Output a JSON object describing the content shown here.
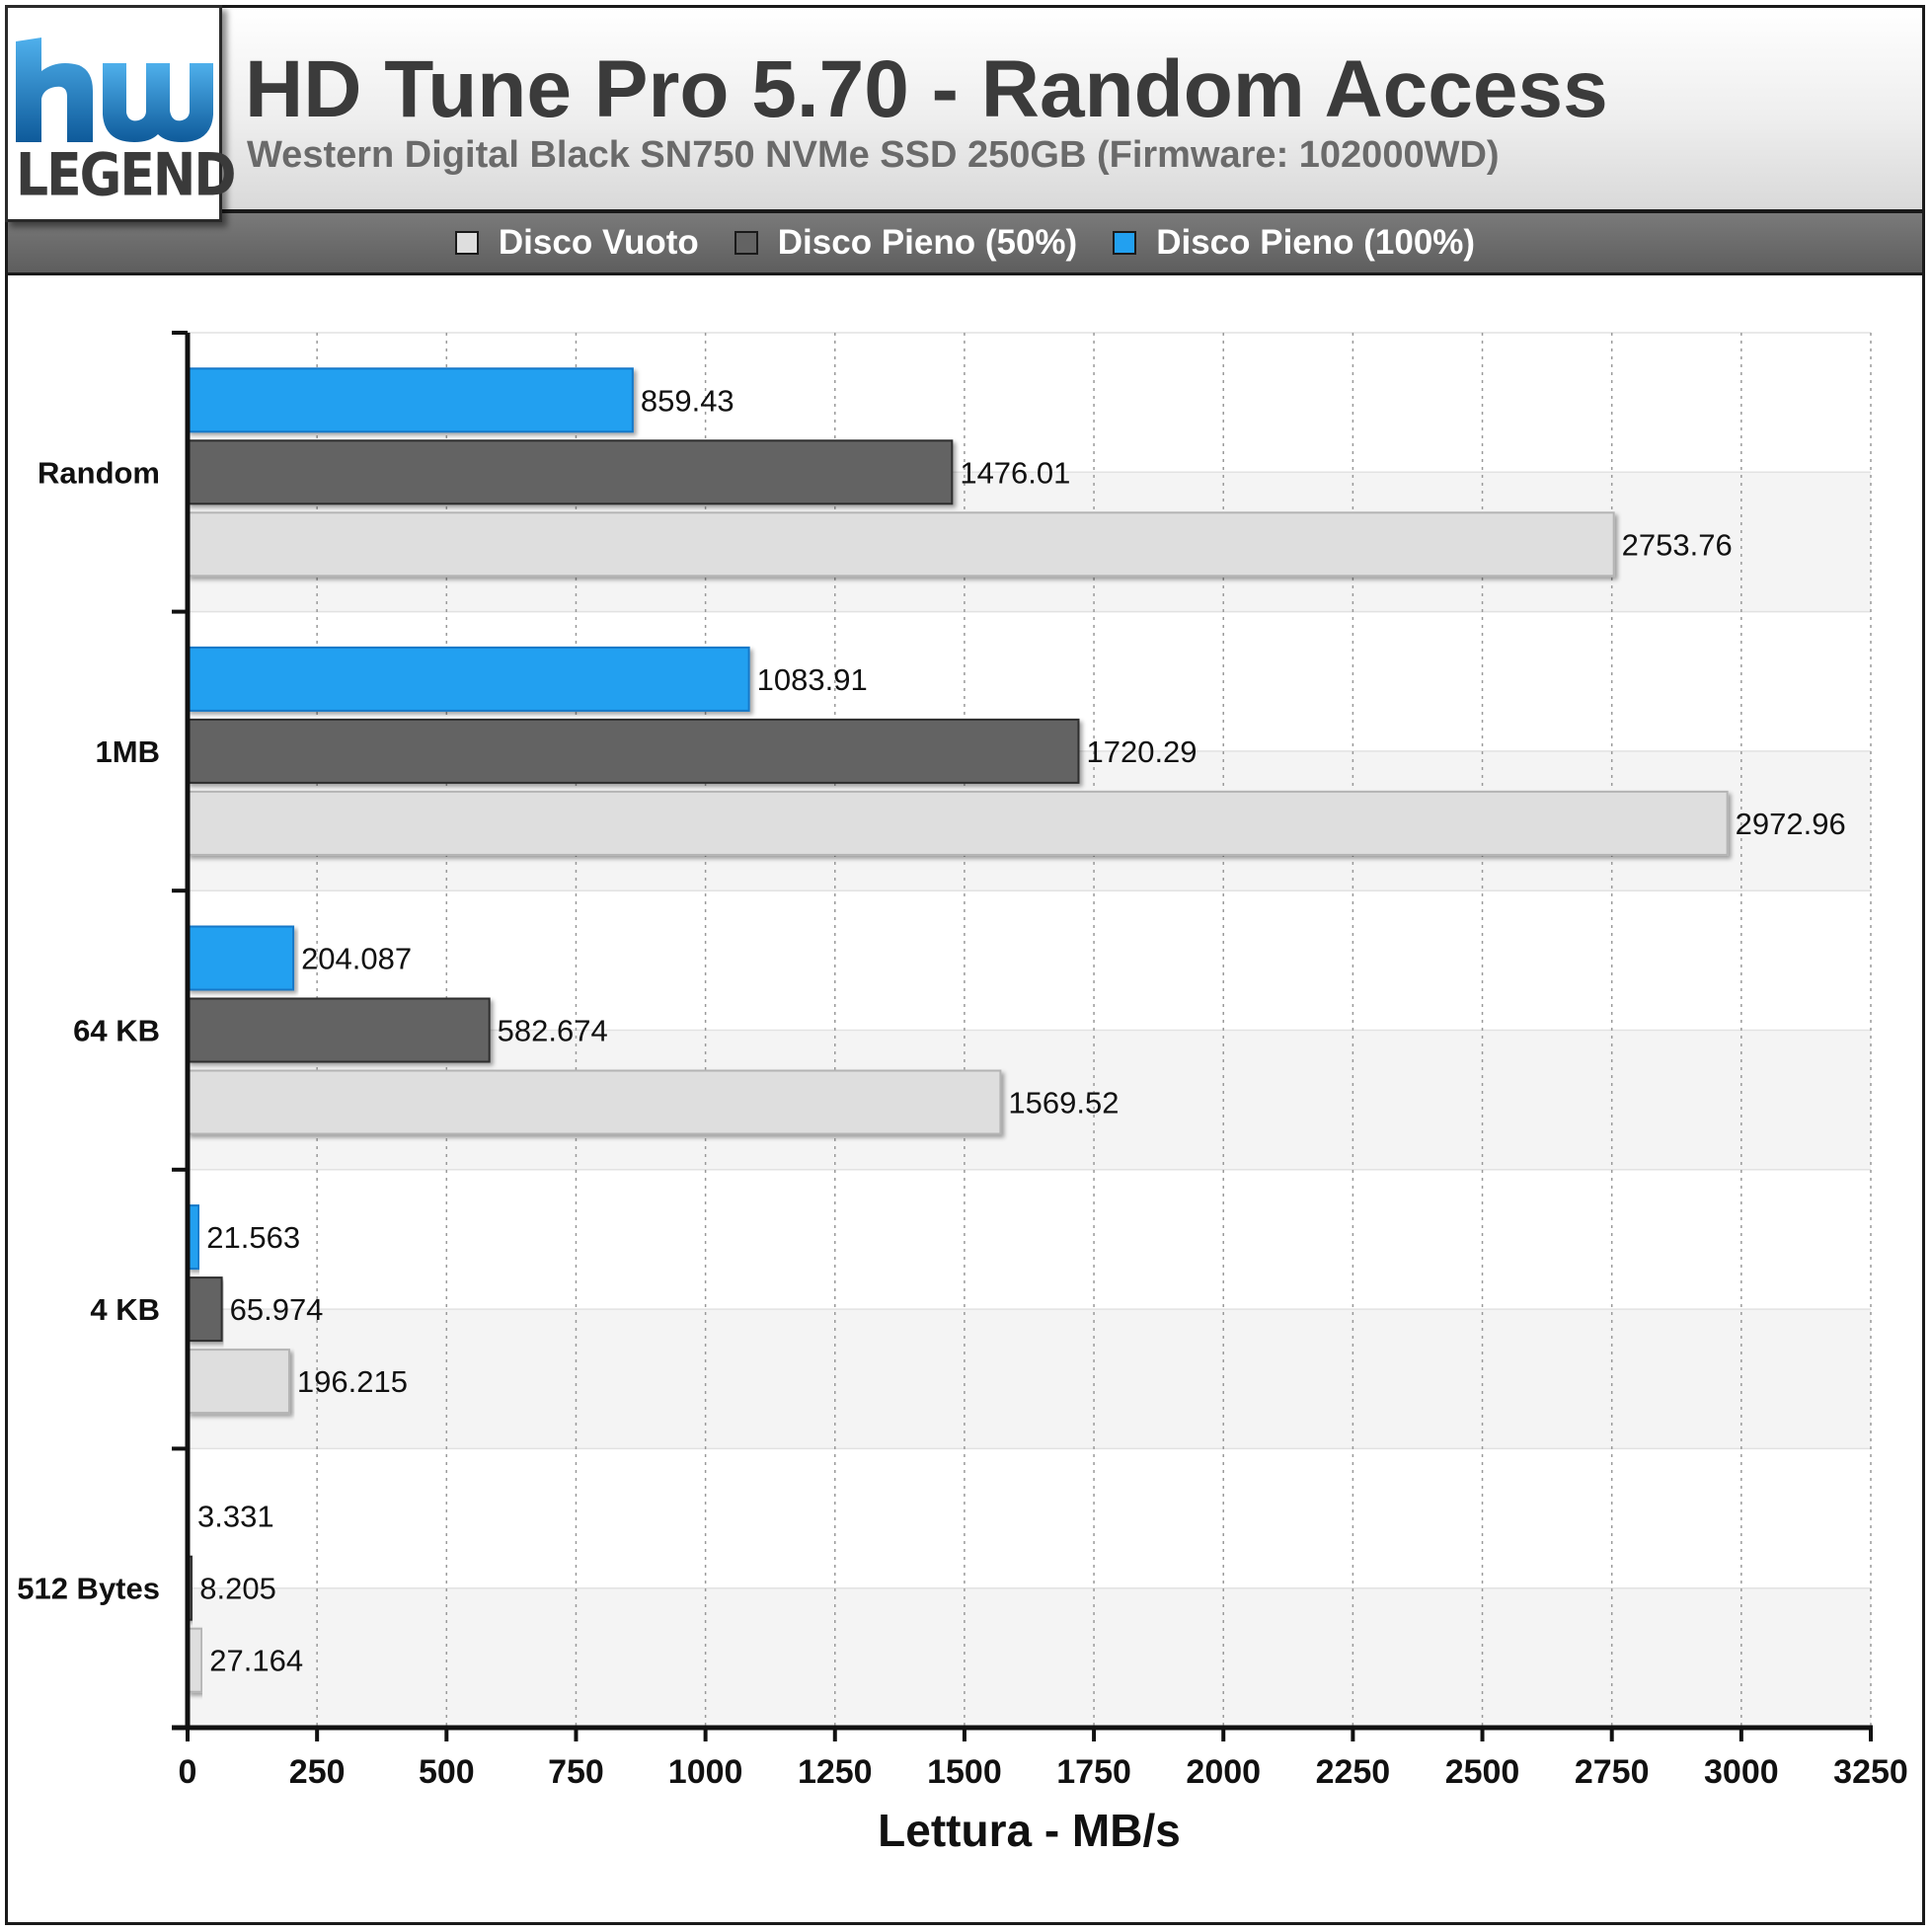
{
  "chart_data": {
    "type": "bar",
    "orientation": "horizontal",
    "title": "HD Tune Pro 5.70 - Random Access",
    "subtitle": "Western Digital Black SN750 NVMe SSD 250GB (Firmware: 102000WD)",
    "xlabel": "Lettura - MB/s",
    "ylabel": "",
    "xlim": [
      0,
      3250
    ],
    "xticks": [
      0,
      250,
      500,
      750,
      1000,
      1250,
      1500,
      1750,
      2000,
      2250,
      2500,
      2750,
      3000,
      3250
    ],
    "grid": true,
    "legend_position": "top",
    "categories": [
      "Random",
      "1MB",
      "64 KB",
      "4 KB",
      "512 Bytes"
    ],
    "series": [
      {
        "name": "Disco Vuoto",
        "color": "#dedede",
        "values": [
          2753.76,
          2972.96,
          1569.52,
          196.215,
          27.164
        ],
        "value_labels": [
          "2753.76",
          "2972.96",
          "1569.52",
          "196.215",
          "27.164"
        ]
      },
      {
        "name": "Disco Pieno (50%)",
        "color": "#636363",
        "values": [
          1476.01,
          1720.29,
          582.674,
          65.974,
          8.205
        ],
        "value_labels": [
          "1476.01",
          "1720.29",
          "582.674",
          "65.974",
          "8.205"
        ]
      },
      {
        "name": "Disco Pieno (100%)",
        "color": "#22a0f0",
        "values": [
          859.43,
          1083.91,
          204.087,
          21.563,
          3.331
        ],
        "value_labels": [
          "859.43",
          "1083.91",
          "204.087",
          "21.563",
          "3.331"
        ]
      }
    ]
  },
  "logo": {
    "word": "LEGEND",
    "colors": {
      "blue": "#1e7fc9",
      "dark_blue": "#0e5a9a",
      "gray": "#3a3a3a"
    }
  }
}
